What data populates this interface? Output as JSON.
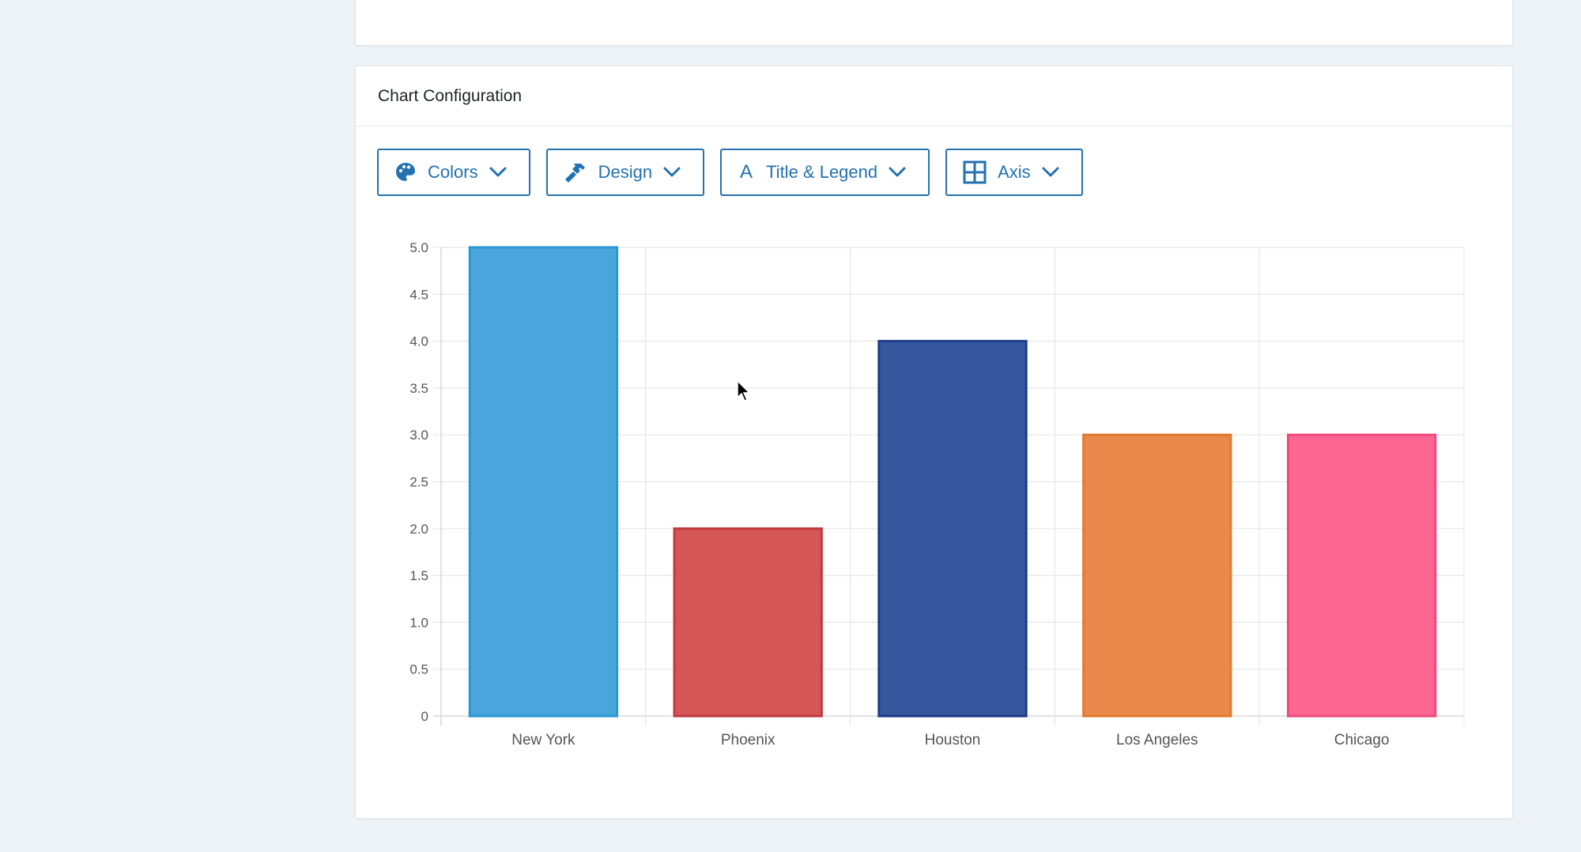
{
  "panel": {
    "title": "Chart Configuration"
  },
  "toolbar": {
    "colors_label": "Colors",
    "design_label": "Design",
    "title_legend_label": "Title & Legend",
    "title_legend_glyph": "A",
    "axis_label": "Axis"
  },
  "icons": {
    "colors": "palette-icon",
    "design": "hammer-icon",
    "title_legend": "letter-a-icon",
    "axis": "grid-icon",
    "dropdown": "chevron-down-icon"
  },
  "accent_color": "#2271b1",
  "chart_data": {
    "type": "bar",
    "categories": [
      "New York",
      "Phoenix",
      "Houston",
      "Los Angeles",
      "Chicago"
    ],
    "values": [
      5,
      2,
      4,
      3,
      3
    ],
    "ylim": [
      0,
      5
    ],
    "yticks": [
      0,
      0.5,
      1.0,
      1.5,
      2.0,
      2.5,
      3.0,
      3.5,
      4.0,
      4.5,
      5.0
    ],
    "ytick_labels": [
      "0",
      "0.5",
      "1.0",
      "1.5",
      "2.0",
      "2.5",
      "3.0",
      "3.5",
      "4.0",
      "4.5",
      "5.0"
    ],
    "colors": [
      "#4aa5dc",
      "#d55656",
      "#36579e",
      "#e8894b",
      "#fd6692"
    ],
    "border_colors": [
      "#2897d4",
      "#c1393f",
      "#1e3a8a",
      "#e2792f",
      "#f04a7d"
    ],
    "grid": true,
    "title": "",
    "xlabel": "",
    "ylabel": ""
  }
}
